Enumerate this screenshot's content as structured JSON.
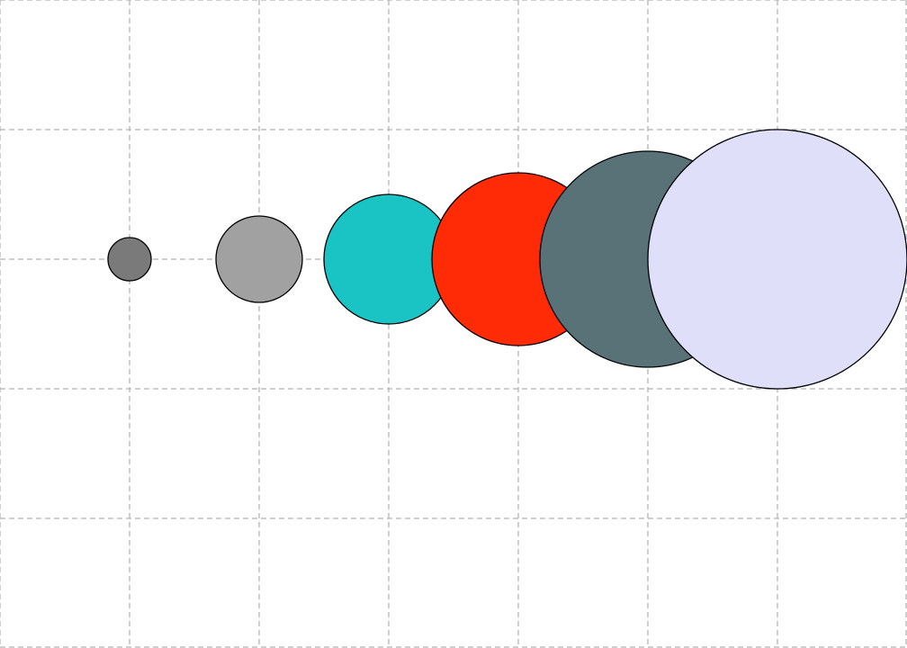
{
  "grid": {
    "visible": true,
    "style": "dashed",
    "color": "#bdbdbd",
    "columns": 7,
    "rows": 5
  },
  "circles": [
    {
      "name": "circle-1",
      "diameter": 1,
      "color": "#7a7a7a"
    },
    {
      "name": "circle-2",
      "diameter": 2,
      "color": "#a1a1a1"
    },
    {
      "name": "circle-3",
      "diameter": 3,
      "color": "#1bc4c4"
    },
    {
      "name": "circle-4",
      "diameter": 4,
      "color": "#ff2a06"
    },
    {
      "name": "circle-5",
      "diameter": 5,
      "color": "#587278"
    },
    {
      "name": "circle-6",
      "diameter": 6,
      "color": "#dfdffa"
    }
  ],
  "outline_color": "#000000"
}
